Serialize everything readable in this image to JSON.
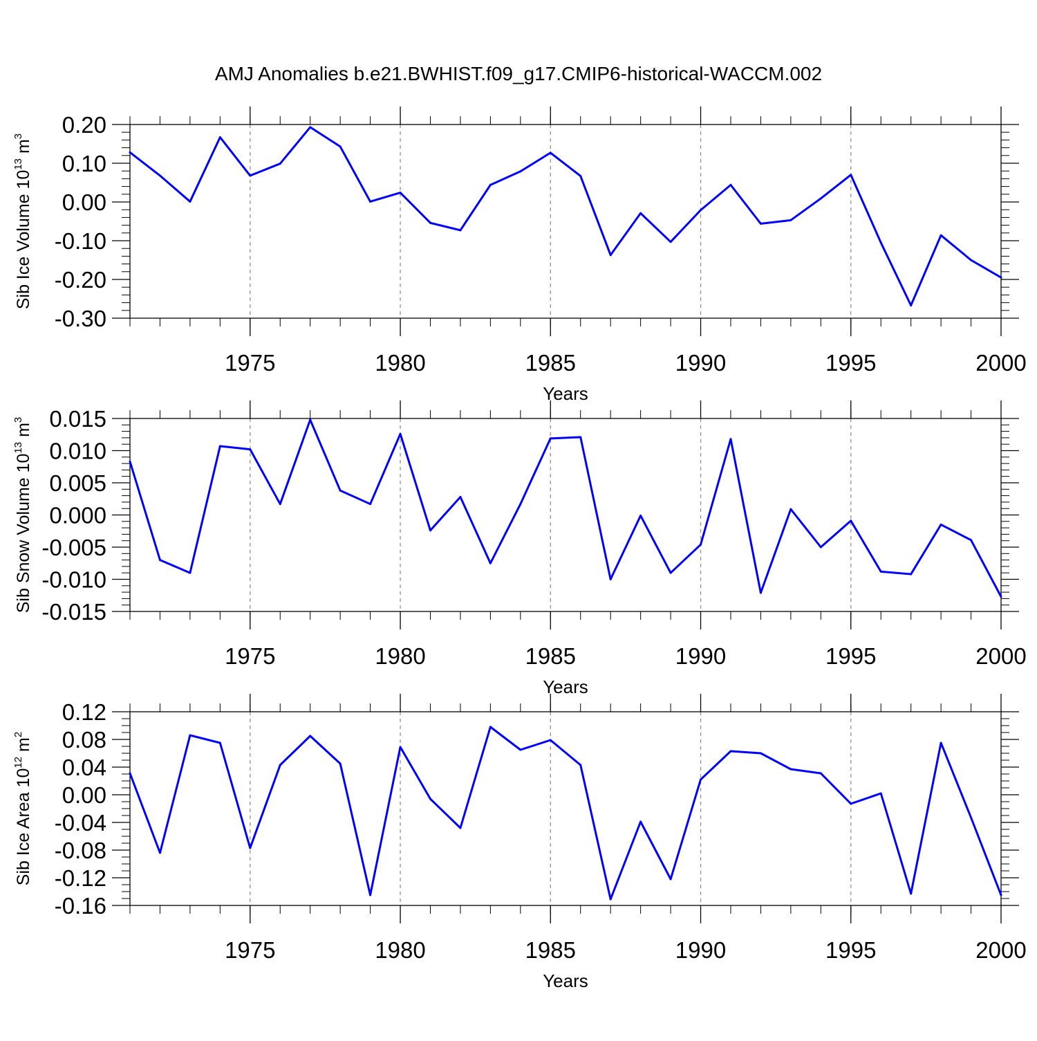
{
  "title": "AMJ Anomalies b.e21.BWHIST.f09_g17.CMIP6-historical-WACCM.002",
  "chart_data": [
    {
      "type": "line",
      "ylabel": "Sib Ice Volume 10",
      "ylabel_exp": "13",
      "ylabel_unit": " m",
      "ylabel_unit_exp": "3",
      "xlabel": "Years",
      "ylim": [
        -0.3,
        0.2
      ],
      "yticks": [
        0.2,
        0.1,
        0.0,
        -0.1,
        -0.2,
        -0.3
      ],
      "ytick_labels": [
        "0.20",
        "0.10",
        "0.00",
        "-0.10",
        "-0.20",
        "-0.30"
      ],
      "yminor_step": 0.02,
      "xlim": [
        1971,
        2000
      ],
      "xticks": [
        1975,
        1980,
        1985,
        1990,
        1995,
        2000
      ],
      "xtick_labels": [
        "1975",
        "1980",
        "1985",
        "1990",
        "1995",
        "2000"
      ],
      "color": "#0000ff",
      "x": [
        1971,
        1972,
        1973,
        1974,
        1975,
        1976,
        1977,
        1978,
        1979,
        1980,
        1981,
        1982,
        1983,
        1984,
        1985,
        1986,
        1987,
        1988,
        1989,
        1990,
        1991,
        1992,
        1993,
        1994,
        1995,
        1996,
        1997,
        1998,
        1999,
        2000
      ],
      "values": [
        0.128,
        0.068,
        0.001,
        0.167,
        0.068,
        0.099,
        0.193,
        0.143,
        0.001,
        0.024,
        -0.054,
        -0.073,
        0.044,
        0.079,
        0.127,
        0.067,
        -0.137,
        -0.029,
        -0.103,
        -0.021,
        0.044,
        -0.056,
        -0.047,
        0.009,
        0.07,
        -0.105,
        -0.267,
        -0.086,
        -0.15,
        -0.195
      ]
    },
    {
      "type": "line",
      "ylabel": "Sib Snow Volume 10",
      "ylabel_exp": "13",
      "ylabel_unit": " m",
      "ylabel_unit_exp": "3",
      "xlabel": "Years",
      "ylim": [
        -0.015,
        0.015
      ],
      "yticks": [
        0.015,
        0.01,
        0.005,
        0.0,
        -0.005,
        -0.01,
        -0.015
      ],
      "ytick_labels": [
        "0.015",
        "0.010",
        "0.005",
        "0.000",
        "-0.005",
        "-0.010",
        "-0.015"
      ],
      "yminor_step": 0.001,
      "xlim": [
        1971,
        2000
      ],
      "xticks": [
        1975,
        1980,
        1985,
        1990,
        1995,
        2000
      ],
      "xtick_labels": [
        "1975",
        "1980",
        "1985",
        "1990",
        "1995",
        "2000"
      ],
      "color": "#0000ff",
      "x": [
        1971,
        1972,
        1973,
        1974,
        1975,
        1976,
        1977,
        1978,
        1979,
        1980,
        1981,
        1982,
        1983,
        1984,
        1985,
        1986,
        1987,
        1988,
        1989,
        1990,
        1991,
        1992,
        1993,
        1994,
        1995,
        1996,
        1997,
        1998,
        1999,
        2000
      ],
      "values": [
        0.0083,
        -0.007,
        -0.009,
        0.0107,
        0.0102,
        0.0017,
        0.0148,
        0.0038,
        0.0017,
        0.0126,
        -0.0024,
        0.0028,
        -0.0075,
        0.0017,
        0.0119,
        0.0121,
        -0.01,
        -0.0001,
        -0.009,
        -0.0046,
        0.0118,
        -0.0121,
        0.0009,
        -0.005,
        -0.0009,
        -0.0088,
        -0.0092,
        -0.0015,
        -0.0039,
        -0.0127
      ]
    },
    {
      "type": "line",
      "ylabel": "Sib Ice Area 10",
      "ylabel_exp": "12",
      "ylabel_unit": " m",
      "ylabel_unit_exp": "2",
      "xlabel": "Years",
      "ylim": [
        -0.16,
        0.12
      ],
      "yticks": [
        0.12,
        0.08,
        0.04,
        0.0,
        -0.04,
        -0.08,
        -0.12,
        -0.16
      ],
      "ytick_labels": [
        "0.12",
        "0.08",
        "0.04",
        "0.00",
        "-0.04",
        "-0.08",
        "-0.12",
        "-0.16"
      ],
      "yminor_step": 0.01,
      "xlim": [
        1971,
        2000
      ],
      "xticks": [
        1975,
        1980,
        1985,
        1990,
        1995,
        2000
      ],
      "xtick_labels": [
        "1975",
        "1980",
        "1985",
        "1990",
        "1995",
        "2000"
      ],
      "color": "#0000ff",
      "x": [
        1971,
        1972,
        1973,
        1974,
        1975,
        1976,
        1977,
        1978,
        1979,
        1980,
        1981,
        1982,
        1983,
        1984,
        1985,
        1986,
        1987,
        1988,
        1989,
        1990,
        1991,
        1992,
        1993,
        1994,
        1995,
        1996,
        1997,
        1998,
        1999,
        2000
      ],
      "values": [
        0.031,
        -0.084,
        0.086,
        0.075,
        -0.077,
        0.043,
        0.085,
        0.045,
        -0.145,
        0.069,
        -0.006,
        -0.048,
        0.098,
        0.065,
        0.079,
        0.043,
        -0.151,
        -0.039,
        -0.122,
        0.022,
        0.063,
        0.06,
        0.037,
        0.031,
        -0.013,
        0.002,
        -0.143,
        0.075,
        -0.033,
        -0.145
      ]
    }
  ]
}
